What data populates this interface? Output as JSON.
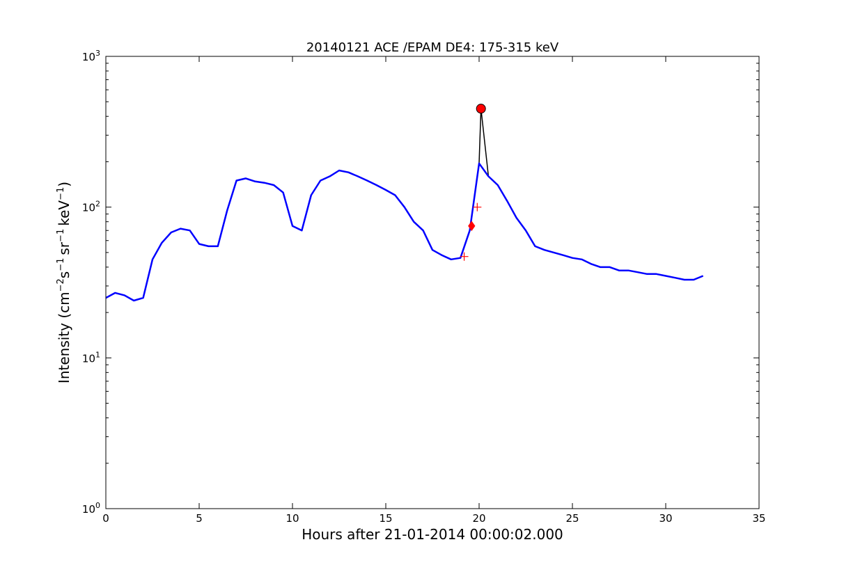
{
  "chart_data": {
    "type": "line",
    "title": "20140121 ACE /EPAM DE4: 175-315 keV",
    "xlabel": "Hours after 21-01-2014 00:00:02.000",
    "ylabel": {
      "prefix": "Intensity (cm",
      "exp1": "−2",
      "mid1": "s",
      "exp2": "−1",
      "mid2": "sr",
      "exp3": "−1",
      "mid3": "keV",
      "exp4": "−1",
      "suffix": ")"
    },
    "xlim": [
      0,
      35
    ],
    "ylim": [
      1,
      1000
    ],
    "yscale": "log",
    "grid": false,
    "xticks": [
      0,
      5,
      10,
      15,
      20,
      25,
      30,
      35
    ],
    "xtick_labels": [
      "0",
      "5",
      "10",
      "15",
      "20",
      "25",
      "30",
      "35"
    ],
    "yticks": [
      1,
      10,
      100,
      1000
    ],
    "ytick_labels": [
      {
        "base": "10",
        "exp": "0"
      },
      {
        "base": "10",
        "exp": "1"
      },
      {
        "base": "10",
        "exp": "2"
      },
      {
        "base": "10",
        "exp": "3"
      }
    ],
    "series": [
      {
        "color": "#000000",
        "x": [
          0,
          0.5,
          1,
          1.5,
          2,
          2.5,
          3,
          3.5,
          4,
          4.5,
          5,
          5.5,
          6,
          6.5,
          7,
          7.5,
          8,
          8.5,
          9,
          9.5,
          10,
          10.5,
          11,
          11.5,
          12,
          12.5,
          13,
          13.5,
          14,
          14.5,
          15,
          15.5,
          16,
          16.5,
          17,
          17.5,
          18,
          18.5,
          19,
          19.5,
          20,
          20.1,
          20.5,
          21,
          21.5,
          22,
          22.5,
          23,
          23.5,
          24,
          24.5,
          25,
          25.5,
          26,
          26.5,
          27,
          27.5,
          28,
          28.5,
          29,
          29.5,
          30,
          30.5,
          31,
          31.5,
          32
        ],
        "values": [
          25,
          27,
          26,
          24,
          25,
          45,
          58,
          68,
          72,
          70,
          57,
          55,
          55,
          95,
          150,
          155,
          148,
          145,
          140,
          125,
          75,
          70,
          120,
          150,
          160,
          175,
          170,
          160,
          150,
          140,
          130,
          120,
          100,
          80,
          70,
          52,
          48,
          45,
          46,
          70,
          195,
          450,
          160,
          140,
          110,
          85,
          70,
          55,
          52,
          50,
          48,
          46,
          45,
          42,
          40,
          40,
          38,
          38,
          37,
          36,
          36,
          35,
          34,
          33,
          33,
          35
        ]
      },
      {
        "color": "#0000ff",
        "x": [
          0,
          0.5,
          1,
          1.5,
          2,
          2.5,
          3,
          3.5,
          4,
          4.5,
          5,
          5.5,
          6,
          6.5,
          7,
          7.5,
          8,
          8.5,
          9,
          9.5,
          10,
          10.5,
          11,
          11.5,
          12,
          12.5,
          13,
          13.5,
          14,
          14.5,
          15,
          15.5,
          16,
          16.5,
          17,
          17.5,
          18,
          18.5,
          19,
          19.5,
          20,
          20.5,
          21,
          21.5,
          22,
          22.5,
          23,
          23.5,
          24,
          24.5,
          25,
          25.5,
          26,
          26.5,
          27,
          27.5,
          28,
          28.5,
          29,
          29.5,
          30,
          30.5,
          31,
          31.5,
          32
        ],
        "values": [
          25,
          27,
          26,
          24,
          25,
          45,
          58,
          68,
          72,
          70,
          57,
          55,
          55,
          95,
          150,
          155,
          148,
          145,
          140,
          125,
          75,
          70,
          120,
          150,
          160,
          175,
          170,
          160,
          150,
          140,
          130,
          120,
          100,
          80,
          70,
          52,
          48,
          45,
          46,
          70,
          195,
          160,
          140,
          110,
          85,
          70,
          55,
          52,
          50,
          48,
          46,
          45,
          42,
          40,
          40,
          38,
          38,
          37,
          36,
          36,
          35,
          34,
          33,
          33,
          35
        ]
      }
    ],
    "markers": [
      {
        "shape": "circle",
        "x": 20.1,
        "y": 450,
        "color": "#ff0000"
      },
      {
        "shape": "diamond",
        "x": 19.6,
        "y": 75,
        "color": "#ff0000"
      },
      {
        "shape": "plus",
        "x": 19.2,
        "y": 47,
        "color": "#ff0000"
      },
      {
        "shape": "plus",
        "x": 19.9,
        "y": 100,
        "color": "#ff0000"
      }
    ]
  }
}
